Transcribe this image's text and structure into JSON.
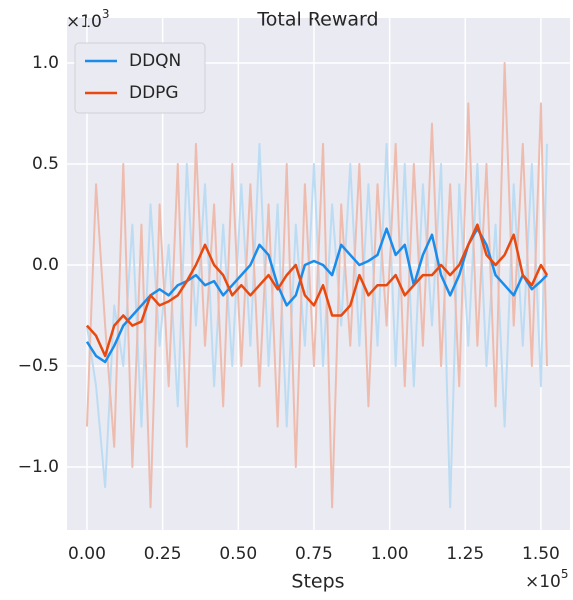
{
  "chart_data": {
    "type": "line",
    "title": "Total Reward",
    "xlabel": "Steps",
    "x_offset": {
      "base": "×10",
      "exponent": "5"
    },
    "y_offset": {
      "base": "×10",
      "exponent": "3"
    },
    "x": [
      0,
      0.03,
      0.06,
      0.09,
      0.12,
      0.15,
      0.18,
      0.21,
      0.24,
      0.27,
      0.3,
      0.33,
      0.36,
      0.39,
      0.42,
      0.45,
      0.48,
      0.51,
      0.54,
      0.57,
      0.6,
      0.63,
      0.66,
      0.69,
      0.72,
      0.75,
      0.78,
      0.81,
      0.84,
      0.87,
      0.9,
      0.93,
      0.96,
      0.99,
      1.02,
      1.05,
      1.08,
      1.11,
      1.14,
      1.17,
      1.2,
      1.23,
      1.26,
      1.29,
      1.32,
      1.35,
      1.38,
      1.41,
      1.44,
      1.47,
      1.5,
      1.52
    ],
    "series": [
      {
        "name": "DDQN",
        "color": "#1a8ceb",
        "raw_color": "#bcdcf3",
        "values": [
          -0.38,
          -0.45,
          -0.48,
          -0.4,
          -0.3,
          -0.25,
          -0.2,
          -0.15,
          -0.12,
          -0.15,
          -0.1,
          -0.08,
          -0.05,
          -0.1,
          -0.08,
          -0.15,
          -0.1,
          -0.05,
          0,
          0.1,
          0.05,
          -0.1,
          -0.2,
          -0.15,
          0,
          0.02,
          0,
          -0.05,
          0.1,
          0.05,
          0,
          0.02,
          0.05,
          0.18,
          0.05,
          0.1,
          -0.1,
          0.05,
          0.15,
          -0.05,
          -0.15,
          -0.05,
          0.1,
          0.18,
          0.1,
          -0.05,
          -0.1,
          -0.15,
          -0.05,
          -0.12,
          -0.08,
          -0.05
        ],
        "raw_values": [
          -0.3,
          -0.6,
          -1.1,
          -0.2,
          -0.5,
          0.2,
          -0.8,
          0.3,
          -0.4,
          0.1,
          -0.7,
          0.5,
          -0.3,
          0.4,
          -0.6,
          0.2,
          -0.5,
          0.4,
          -0.4,
          0.6,
          -0.5,
          0.3,
          -0.8,
          0.2,
          -0.4,
          0.5,
          -0.5,
          0.3,
          -0.3,
          0.5,
          -0.4,
          0.4,
          -0.4,
          0.6,
          -0.5,
          0.5,
          -0.6,
          0.4,
          -0.3,
          0.5,
          -1.2,
          0.4,
          -0.4,
          0.5,
          -0.5,
          0.2,
          -0.8,
          0.4,
          -0.4,
          0.5,
          -0.6,
          0.6
        ]
      },
      {
        "name": "DDPG",
        "color": "#e8490f",
        "raw_color": "#eebcae",
        "values": [
          -0.3,
          -0.35,
          -0.45,
          -0.3,
          -0.25,
          -0.3,
          -0.28,
          -0.15,
          -0.2,
          -0.18,
          -0.15,
          -0.08,
          0,
          0.1,
          0,
          -0.05,
          -0.15,
          -0.1,
          -0.15,
          -0.1,
          -0.05,
          -0.12,
          -0.05,
          0,
          -0.15,
          -0.2,
          -0.1,
          -0.25,
          -0.25,
          -0.2,
          -0.05,
          -0.15,
          -0.1,
          -0.1,
          -0.05,
          -0.15,
          -0.1,
          -0.05,
          -0.05,
          0,
          -0.05,
          0,
          0.1,
          0.2,
          0.05,
          0,
          0.05,
          0.15,
          -0.05,
          -0.1,
          0,
          -0.05
        ],
        "raw_values": [
          -0.8,
          0.4,
          -0.3,
          -0.9,
          0.5,
          -1.0,
          0.2,
          -1.2,
          0.3,
          -0.6,
          0.5,
          -0.9,
          0.6,
          -0.4,
          0.3,
          -0.7,
          0.5,
          -0.5,
          0.4,
          -0.6,
          0.3,
          -0.8,
          0.5,
          -1.0,
          0.4,
          -0.5,
          0.6,
          -1.2,
          0.3,
          -0.4,
          0.5,
          -0.7,
          0.4,
          -0.3,
          0.6,
          -0.6,
          0.5,
          -0.4,
          0.7,
          -0.5,
          0.4,
          -0.6,
          0.8,
          -0.4,
          0.5,
          -0.7,
          1.0,
          -0.3,
          0.6,
          -0.5,
          0.8,
          -0.5
        ]
      }
    ],
    "xlim": [
      -0.066,
      1.596
    ],
    "ylim": [
      -1.312,
      1.223
    ],
    "xticks": [
      {
        "value": 0,
        "label": "0.00"
      },
      {
        "value": 0.25,
        "label": "0.25"
      },
      {
        "value": 0.5,
        "label": "0.50"
      },
      {
        "value": 0.75,
        "label": "0.75"
      },
      {
        "value": 1,
        "label": "1.00"
      },
      {
        "value": 1.25,
        "label": "1.25"
      },
      {
        "value": 1.5,
        "label": "1.50"
      }
    ],
    "yticks": [
      {
        "value": -1,
        "label": "−1.0"
      },
      {
        "value": -0.5,
        "label": "−0.5"
      },
      {
        "value": 0,
        "label": "0.0"
      },
      {
        "value": 0.5,
        "label": "0.5"
      },
      {
        "value": 1,
        "label": "1.0"
      }
    ],
    "grid": true,
    "legend": "upper left"
  }
}
